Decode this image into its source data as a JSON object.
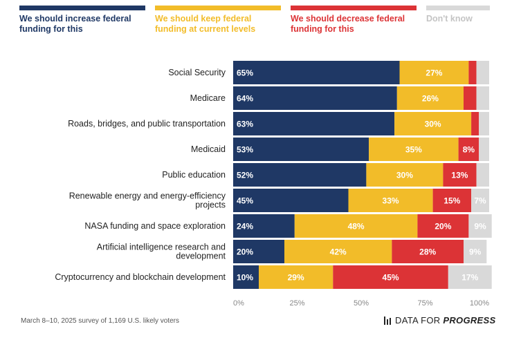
{
  "legend": [
    {
      "label": "We should increase federal funding for this",
      "color": "#1f3865",
      "text_color": "#1f3865"
    },
    {
      "label": "We should keep federal funding at current levels",
      "color": "#f2bc29",
      "text_color": "#f2bc29"
    },
    {
      "label": "We should decrease federal funding for this",
      "color": "#dc3336",
      "text_color": "#dc3336"
    },
    {
      "label": "Don't know",
      "color": "#d9d9d9",
      "text_color": "#c4c4c4"
    }
  ],
  "chart_data": {
    "type": "bar",
    "orientation": "horizontal",
    "stacked": true,
    "categories": [
      "Social Security",
      "Medicare",
      "Roads, bridges, and public transportation",
      "Medicaid",
      "Public education",
      "Renewable energy and energy-efficiency projects",
      "NASA funding and space exploration",
      "Artificial intelligence research and development",
      "Cryptocurrency and blockchain development"
    ],
    "series": [
      {
        "name": "We should increase federal funding for this",
        "color": "#1f3865",
        "label_color": "#ffffff",
        "values": [
          65,
          64,
          63,
          53,
          52,
          45,
          24,
          20,
          10
        ],
        "labels": [
          "65%",
          "64%",
          "63%",
          "53%",
          "52%",
          "45%",
          "24%",
          "20%",
          "10%"
        ]
      },
      {
        "name": "We should keep federal funding at current levels",
        "color": "#f2bc29",
        "label_color": "#ffffff",
        "values": [
          27,
          26,
          30,
          35,
          30,
          33,
          48,
          42,
          29
        ],
        "labels": [
          "27%",
          "26%",
          "30%",
          "35%",
          "30%",
          "33%",
          "48%",
          "42%",
          "29%"
        ]
      },
      {
        "name": "We should decrease federal funding for this",
        "color": "#dc3336",
        "label_color": "#ffffff",
        "values": [
          3,
          5,
          3,
          8,
          13,
          15,
          20,
          28,
          45
        ],
        "labels": [
          "",
          "",
          "",
          "8%",
          "13%",
          "15%",
          "20%",
          "28%",
          "45%"
        ]
      },
      {
        "name": "Don't know",
        "color": "#d9d9d9",
        "label_color": "#ffffff",
        "values": [
          5,
          5,
          4,
          4,
          5,
          7,
          9,
          9,
          17
        ],
        "labels": [
          "",
          "",
          "",
          "",
          "",
          "7%",
          "9%",
          "9%",
          "17%"
        ]
      }
    ],
    "xlim": [
      0,
      100
    ],
    "xticks": [
      "0%",
      "25%",
      "50%",
      "75%",
      "100%"
    ],
    "grid": false,
    "legend_position": "top"
  },
  "footer": {
    "note": "March 8–10, 2025 survey of 1,169 U.S. likely voters",
    "brand_prefix": "DATA FOR ",
    "brand_emphasis": "PROGRESS",
    "brand_icon": "bar-chart-icon"
  }
}
